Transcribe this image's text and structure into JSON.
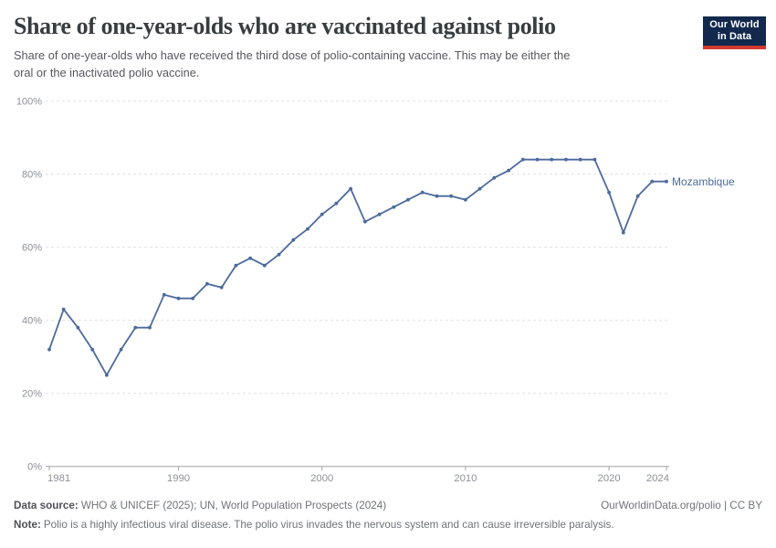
{
  "header": {
    "title": "Share of one-year-olds who are vaccinated against polio",
    "subtitle_lines": [
      "Share of one-year-olds who have received the third dose of polio-containing vaccine. This may be either the",
      "oral or the inactivated polio vaccine."
    ]
  },
  "logo": {
    "line1": "Our World",
    "line2": "in Data",
    "background_color": "#12294d",
    "accent_color": "#d23a2e"
  },
  "chart_data": {
    "type": "line",
    "title": "Share of one-year-olds who are vaccinated against polio",
    "xlabel": "",
    "ylabel": "",
    "xlim": [
      1981,
      2024
    ],
    "ylim": [
      0,
      100
    ],
    "grid": "horizontal-dashed",
    "legend_position": "end-of-line-label",
    "x": [
      1981,
      1982,
      1983,
      1984,
      1985,
      1986,
      1987,
      1988,
      1989,
      1990,
      1991,
      1992,
      1993,
      1994,
      1995,
      1996,
      1997,
      1998,
      1999,
      2000,
      2001,
      2002,
      2003,
      2004,
      2005,
      2006,
      2007,
      2008,
      2009,
      2010,
      2011,
      2012,
      2013,
      2014,
      2015,
      2016,
      2017,
      2018,
      2019,
      2020,
      2021,
      2022,
      2023,
      2024
    ],
    "series": [
      {
        "name": "Mozambique",
        "color": "#4C6A9C",
        "values": [
          32,
          43,
          38,
          32,
          25,
          32,
          38,
          38,
          47,
          46,
          46,
          50,
          49,
          55,
          57,
          55,
          58,
          62,
          65,
          69,
          72,
          76,
          67,
          69,
          71,
          73,
          75,
          74,
          74,
          73,
          76,
          79,
          81,
          84,
          84,
          84,
          84,
          84,
          84,
          75,
          64,
          74,
          78,
          78
        ]
      }
    ],
    "yticks": [
      {
        "value": 0,
        "label": "0%"
      },
      {
        "value": 20,
        "label": "20%"
      },
      {
        "value": 40,
        "label": "40%"
      },
      {
        "value": 60,
        "label": "60%"
      },
      {
        "value": 80,
        "label": "80%"
      },
      {
        "value": 100,
        "label": "100%"
      }
    ],
    "xticks": [
      {
        "value": 1981,
        "label": "1981",
        "anchor": "start"
      },
      {
        "value": 1990,
        "label": "1990",
        "anchor": "middle"
      },
      {
        "value": 2000,
        "label": "2000",
        "anchor": "middle"
      },
      {
        "value": 2010,
        "label": "2010",
        "anchor": "middle"
      },
      {
        "value": 2020,
        "label": "2020",
        "anchor": "middle"
      },
      {
        "value": 2024,
        "label": "2024",
        "anchor": "end"
      }
    ]
  },
  "footer": {
    "datasource_label": "Data source:",
    "datasource_text": "WHO & UNICEF (2025); UN, World Population Prospects (2024)",
    "rights": "OurWorldinData.org/polio | CC BY",
    "note_label": "Note:",
    "note_text": "Polio is a highly infectious viral disease. The polio virus invades the nervous system and can cause irreversible paralysis."
  }
}
